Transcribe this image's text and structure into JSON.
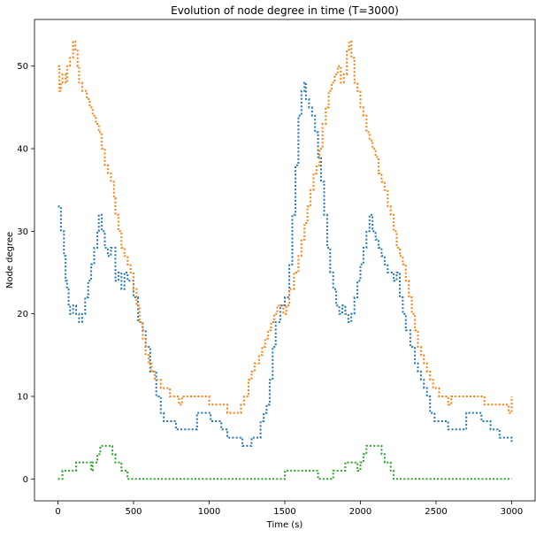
{
  "chart_data": {
    "type": "line",
    "title": "Evolution of node degree in time (T=3000)",
    "xlabel": "Time (s)",
    "ylabel": "Node degree",
    "xlim": [
      -155,
      3155
    ],
    "ylim": [
      -2.65,
      55.65
    ],
    "xticks": [
      0,
      500,
      1000,
      1500,
      2000,
      2500,
      3000
    ],
    "yticks": [
      0,
      10,
      20,
      30,
      40,
      50
    ],
    "grid": false,
    "legend": "none",
    "line_style": "dotted",
    "series": [
      {
        "color": "#1f77b4",
        "points": [
          [
            0,
            33
          ],
          [
            20,
            30
          ],
          [
            40,
            27
          ],
          [
            50,
            24
          ],
          [
            60,
            23
          ],
          [
            70,
            21
          ],
          [
            80,
            20
          ],
          [
            100,
            21
          ],
          [
            120,
            20
          ],
          [
            140,
            19
          ],
          [
            160,
            20
          ],
          [
            180,
            22
          ],
          [
            200,
            24
          ],
          [
            220,
            26
          ],
          [
            240,
            28
          ],
          [
            260,
            30
          ],
          [
            270,
            32
          ],
          [
            290,
            30
          ],
          [
            310,
            28
          ],
          [
            330,
            27
          ],
          [
            350,
            28
          ],
          [
            380,
            24
          ],
          [
            400,
            25
          ],
          [
            420,
            23
          ],
          [
            440,
            25
          ],
          [
            460,
            24
          ],
          [
            500,
            22
          ],
          [
            530,
            19
          ],
          [
            560,
            18
          ],
          [
            580,
            16
          ],
          [
            610,
            13
          ],
          [
            650,
            10
          ],
          [
            680,
            8
          ],
          [
            700,
            7
          ],
          [
            760,
            7
          ],
          [
            780,
            6
          ],
          [
            900,
            6
          ],
          [
            920,
            8
          ],
          [
            1000,
            8
          ],
          [
            1010,
            7
          ],
          [
            1050,
            7
          ],
          [
            1080,
            6
          ],
          [
            1120,
            5
          ],
          [
            1200,
            5
          ],
          [
            1220,
            4
          ],
          [
            1260,
            4
          ],
          [
            1280,
            5
          ],
          [
            1320,
            5
          ],
          [
            1340,
            7
          ],
          [
            1360,
            8
          ],
          [
            1380,
            9
          ],
          [
            1400,
            12
          ],
          [
            1420,
            16
          ],
          [
            1440,
            19
          ],
          [
            1470,
            21
          ],
          [
            1500,
            22
          ],
          [
            1530,
            26
          ],
          [
            1550,
            32
          ],
          [
            1570,
            38
          ],
          [
            1590,
            44
          ],
          [
            1610,
            47
          ],
          [
            1630,
            48
          ],
          [
            1640,
            46
          ],
          [
            1660,
            45
          ],
          [
            1680,
            44
          ],
          [
            1700,
            42
          ],
          [
            1720,
            39
          ],
          [
            1740,
            36
          ],
          [
            1760,
            32
          ],
          [
            1780,
            28
          ],
          [
            1800,
            25
          ],
          [
            1820,
            23
          ],
          [
            1840,
            21
          ],
          [
            1860,
            20
          ],
          [
            1880,
            21
          ],
          [
            1900,
            20
          ],
          [
            1920,
            19
          ],
          [
            1940,
            20
          ],
          [
            1960,
            22
          ],
          [
            1980,
            24
          ],
          [
            2000,
            26
          ],
          [
            2020,
            28
          ],
          [
            2040,
            30
          ],
          [
            2060,
            32
          ],
          [
            2080,
            30
          ],
          [
            2100,
            29
          ],
          [
            2120,
            28
          ],
          [
            2140,
            27
          ],
          [
            2160,
            26
          ],
          [
            2180,
            25
          ],
          [
            2200,
            25
          ],
          [
            2220,
            24
          ],
          [
            2240,
            25
          ],
          [
            2260,
            22
          ],
          [
            2280,
            20
          ],
          [
            2300,
            18
          ],
          [
            2330,
            16
          ],
          [
            2360,
            14
          ],
          [
            2380,
            13
          ],
          [
            2400,
            12
          ],
          [
            2420,
            11
          ],
          [
            2440,
            10
          ],
          [
            2460,
            8
          ],
          [
            2490,
            7
          ],
          [
            2560,
            7
          ],
          [
            2580,
            6
          ],
          [
            2680,
            6
          ],
          [
            2700,
            8
          ],
          [
            2780,
            8
          ],
          [
            2800,
            7
          ],
          [
            2840,
            7
          ],
          [
            2860,
            6
          ],
          [
            2900,
            6
          ],
          [
            2920,
            5
          ],
          [
            2980,
            5
          ],
          [
            3000,
            4.5
          ]
        ]
      },
      {
        "color": "#ff7f0e",
        "points": [
          [
            0,
            50
          ],
          [
            10,
            47
          ],
          [
            20,
            48
          ],
          [
            30,
            49
          ],
          [
            40,
            49
          ],
          [
            50,
            48
          ],
          [
            60,
            50
          ],
          [
            80,
            51
          ],
          [
            100,
            53
          ],
          [
            115,
            52
          ],
          [
            130,
            50
          ],
          [
            140,
            48
          ],
          [
            160,
            47
          ],
          [
            190,
            46
          ],
          [
            210,
            45
          ],
          [
            230,
            44
          ],
          [
            250,
            43
          ],
          [
            270,
            42
          ],
          [
            290,
            40
          ],
          [
            310,
            38
          ],
          [
            330,
            37
          ],
          [
            350,
            36
          ],
          [
            370,
            34
          ],
          [
            380,
            32
          ],
          [
            400,
            30
          ],
          [
            420,
            28
          ],
          [
            440,
            27
          ],
          [
            460,
            26
          ],
          [
            480,
            25
          ],
          [
            500,
            23
          ],
          [
            520,
            21
          ],
          [
            540,
            19
          ],
          [
            560,
            17
          ],
          [
            580,
            15
          ],
          [
            600,
            14
          ],
          [
            620,
            13
          ],
          [
            640,
            12
          ],
          [
            660,
            12
          ],
          [
            680,
            11
          ],
          [
            700,
            11
          ],
          [
            720,
            11
          ],
          [
            740,
            10
          ],
          [
            760,
            10
          ],
          [
            780,
            10
          ],
          [
            800,
            9
          ],
          [
            820,
            10
          ],
          [
            840,
            10
          ],
          [
            860,
            10
          ],
          [
            900,
            10
          ],
          [
            980,
            10
          ],
          [
            1000,
            9
          ],
          [
            1030,
            9
          ],
          [
            1050,
            9
          ],
          [
            1100,
            9
          ],
          [
            1120,
            8
          ],
          [
            1200,
            8
          ],
          [
            1210,
            9
          ],
          [
            1230,
            10
          ],
          [
            1260,
            12
          ],
          [
            1280,
            13
          ],
          [
            1300,
            14
          ],
          [
            1330,
            15
          ],
          [
            1350,
            16
          ],
          [
            1370,
            17
          ],
          [
            1390,
            18
          ],
          [
            1410,
            19
          ],
          [
            1430,
            20
          ],
          [
            1450,
            21
          ],
          [
            1470,
            21
          ],
          [
            1490,
            20
          ],
          [
            1510,
            21
          ],
          [
            1530,
            23
          ],
          [
            1560,
            25
          ],
          [
            1590,
            27
          ],
          [
            1610,
            29
          ],
          [
            1630,
            31
          ],
          [
            1650,
            33
          ],
          [
            1670,
            35
          ],
          [
            1690,
            37
          ],
          [
            1710,
            38
          ],
          [
            1730,
            40
          ],
          [
            1750,
            43
          ],
          [
            1770,
            45
          ],
          [
            1790,
            47
          ],
          [
            1810,
            48
          ],
          [
            1830,
            49
          ],
          [
            1850,
            50
          ],
          [
            1870,
            48
          ],
          [
            1890,
            49
          ],
          [
            1910,
            52
          ],
          [
            1925,
            53
          ],
          [
            1940,
            51
          ],
          [
            1960,
            48
          ],
          [
            1980,
            47
          ],
          [
            2000,
            45
          ],
          [
            2020,
            44
          ],
          [
            2040,
            42
          ],
          [
            2060,
            41
          ],
          [
            2080,
            40
          ],
          [
            2100,
            39
          ],
          [
            2120,
            37
          ],
          [
            2140,
            36
          ],
          [
            2160,
            35
          ],
          [
            2180,
            33
          ],
          [
            2200,
            32
          ],
          [
            2220,
            30
          ],
          [
            2240,
            28
          ],
          [
            2260,
            27
          ],
          [
            2280,
            26
          ],
          [
            2300,
            24
          ],
          [
            2320,
            22
          ],
          [
            2340,
            20
          ],
          [
            2360,
            18
          ],
          [
            2380,
            16
          ],
          [
            2400,
            15
          ],
          [
            2420,
            14
          ],
          [
            2440,
            13
          ],
          [
            2460,
            12
          ],
          [
            2480,
            11
          ],
          [
            2500,
            11
          ],
          [
            2520,
            10
          ],
          [
            2540,
            10
          ],
          [
            2560,
            10
          ],
          [
            2580,
            9
          ],
          [
            2600,
            10
          ],
          [
            2620,
            10
          ],
          [
            2700,
            10
          ],
          [
            2720,
            10
          ],
          [
            2740,
            10
          ],
          [
            2800,
            10
          ],
          [
            2820,
            9
          ],
          [
            2840,
            9
          ],
          [
            2900,
            9
          ],
          [
            2920,
            9
          ],
          [
            2940,
            9
          ],
          [
            2960,
            9
          ],
          [
            2980,
            8
          ],
          [
            3000,
            10
          ]
        ]
      },
      {
        "color": "#2ca02c",
        "points": [
          [
            0,
            0
          ],
          [
            30,
            1
          ],
          [
            100,
            1
          ],
          [
            120,
            2
          ],
          [
            200,
            2
          ],
          [
            220,
            1
          ],
          [
            230,
            2
          ],
          [
            260,
            3
          ],
          [
            280,
            4
          ],
          [
            340,
            4
          ],
          [
            360,
            3
          ],
          [
            380,
            2
          ],
          [
            400,
            2
          ],
          [
            420,
            1
          ],
          [
            440,
            1
          ],
          [
            460,
            0
          ],
          [
            1480,
            0
          ],
          [
            1500,
            1
          ],
          [
            1700,
            1
          ],
          [
            1720,
            0
          ],
          [
            1800,
            0
          ],
          [
            1820,
            1
          ],
          [
            1880,
            1
          ],
          [
            1900,
            2
          ],
          [
            1960,
            2
          ],
          [
            1980,
            1
          ],
          [
            2000,
            2
          ],
          [
            2020,
            3
          ],
          [
            2040,
            4
          ],
          [
            2120,
            4
          ],
          [
            2140,
            3
          ],
          [
            2160,
            2
          ],
          [
            2200,
            1
          ],
          [
            2220,
            0
          ],
          [
            3000,
            0
          ]
        ]
      }
    ]
  }
}
